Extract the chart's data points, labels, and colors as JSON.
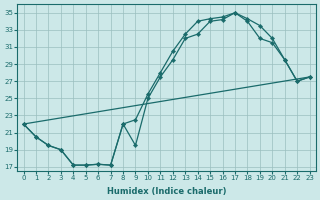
{
  "xlabel": "Humidex (Indice chaleur)",
  "bg_color": "#cce8e8",
  "grid_color": "#9bbfbf",
  "line_color": "#1a6b6b",
  "xlim": [
    -0.5,
    23.5
  ],
  "ylim": [
    16.5,
    36
  ],
  "xticks": [
    0,
    1,
    2,
    3,
    4,
    5,
    6,
    7,
    8,
    9,
    10,
    11,
    12,
    13,
    14,
    15,
    16,
    17,
    18,
    19,
    20,
    21,
    22,
    23
  ],
  "yticks": [
    17,
    19,
    21,
    23,
    25,
    27,
    29,
    31,
    33,
    35
  ],
  "line1_x": [
    0,
    1,
    2,
    3,
    4,
    5,
    6,
    7,
    8,
    9,
    10,
    11,
    12,
    13,
    14,
    15,
    16,
    17,
    18,
    19,
    20,
    21,
    22,
    23
  ],
  "line1_y": [
    22,
    20.5,
    19.5,
    19,
    17.2,
    17.2,
    17.3,
    17.2,
    22,
    19.5,
    25,
    27.5,
    29.5,
    32,
    32.5,
    34,
    34.2,
    35,
    34,
    32,
    31.5,
    29.5,
    27,
    27.5
  ],
  "line2_x": [
    0,
    1,
    2,
    3,
    4,
    5,
    6,
    7,
    8,
    9,
    10,
    11,
    12,
    13,
    14,
    15,
    16,
    17,
    18,
    19,
    20,
    21,
    22,
    23
  ],
  "line2_y": [
    22,
    20.5,
    19.5,
    19,
    17.2,
    17.2,
    17.3,
    17.2,
    22,
    22.5,
    25.5,
    28,
    30.5,
    32.5,
    34,
    34.3,
    34.5,
    35,
    34.3,
    33.5,
    32,
    29.5,
    27,
    27.5
  ],
  "line3_x": [
    0,
    23
  ],
  "line3_y": [
    22,
    27.5
  ]
}
